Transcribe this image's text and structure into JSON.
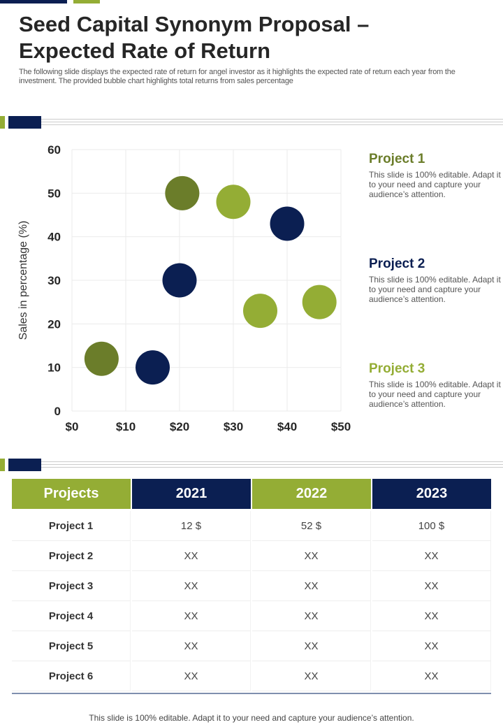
{
  "header": {
    "title": "Seed Capital Synonym Proposal – Expected Rate of Return",
    "subtitle": "The following slide displays the expected rate of return for angel investor as it highlights the expected rate of return each year from the investment. The provided bubble chart highlights total returns from sales percentage"
  },
  "colors": {
    "navy": "#0b1f52",
    "olive": "#6b7d2a",
    "light_green": "#94ad35"
  },
  "chart_data": {
    "type": "scatter",
    "title": "",
    "xlabel": "",
    "ylabel": "Sales in percentage (%)",
    "xlim": [
      0,
      50
    ],
    "ylim": [
      0,
      60
    ],
    "x_ticks": [
      "$0",
      "$10",
      "$20",
      "$30",
      "$40",
      "$50"
    ],
    "y_ticks": [
      "0",
      "10",
      "20",
      "30",
      "40",
      "50",
      "60"
    ],
    "grid": true,
    "legend": "right",
    "series": [
      {
        "name": "Project 1",
        "color": "#6b7d2a",
        "points": [
          {
            "x": 5.5,
            "y": 12
          },
          {
            "x": 20.5,
            "y": 50
          }
        ]
      },
      {
        "name": "Project 2",
        "color": "#0b1f52",
        "points": [
          {
            "x": 15,
            "y": 10
          },
          {
            "x": 20,
            "y": 30
          },
          {
            "x": 40,
            "y": 43
          }
        ]
      },
      {
        "name": "Project 3",
        "color": "#94ad35",
        "points": [
          {
            "x": 30,
            "y": 48
          },
          {
            "x": 35,
            "y": 23
          },
          {
            "x": 46,
            "y": 25
          }
        ]
      }
    ]
  },
  "legend": [
    {
      "title": "Project 1",
      "text": "This slide is 100% editable. Adapt it to your need and capture your audience’s attention."
    },
    {
      "title": "Project 2",
      "text": "This slide is 100% editable. Adapt it to your need and capture your audience’s attention."
    },
    {
      "title": "Project 3",
      "text": "This slide is 100% editable. Adapt it to your need and capture your audience’s attention."
    }
  ],
  "table": {
    "headers": [
      "Projects",
      "2021",
      "2022",
      "2023"
    ],
    "rows": [
      [
        "Project 1",
        "12 $",
        "52 $",
        "100 $"
      ],
      [
        "Project 2",
        "XX",
        "XX",
        "XX"
      ],
      [
        "Project 3",
        "XX",
        "XX",
        "XX"
      ],
      [
        "Project 4",
        "XX",
        "XX",
        "XX"
      ],
      [
        "Project 5",
        "XX",
        "XX",
        "XX"
      ],
      [
        "Project 6",
        "XX",
        "XX",
        "XX"
      ]
    ]
  },
  "footer": "This slide is 100% editable. Adapt it to your need and capture your audience’s attention."
}
